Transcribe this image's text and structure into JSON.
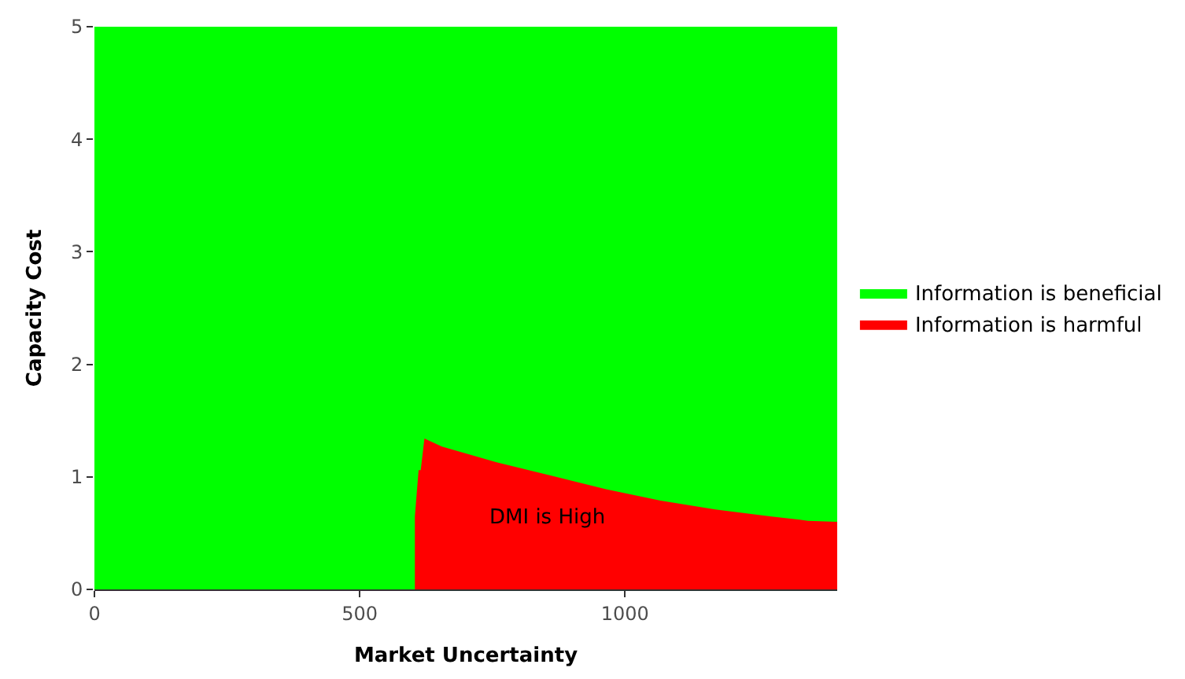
{
  "chart_data": {
    "type": "area",
    "xlabel": "Market Uncertainty",
    "ylabel": "Capacity Cost",
    "series": [
      {
        "name": "Information is beneficial",
        "color": "#00ff00",
        "x": [
          0,
          1400
        ],
        "values": [
          5,
          5
        ]
      },
      {
        "name": "Information is harmful",
        "color": "#ff0000",
        "x": [
          604,
          604,
          611,
          615,
          622,
          655,
          758,
          861,
          964,
          1067,
          1170,
          1273,
          1345,
          1400
        ],
        "values": [
          0,
          0.65,
          1.06,
          1.06,
          1.34,
          1.27,
          1.13,
          1.01,
          0.89,
          0.79,
          0.71,
          0.65,
          0.61,
          0.6
        ]
      }
    ],
    "annotations": [
      "DMI is High"
    ],
    "xlim": [
      0,
      1400
    ],
    "xticks": [
      0,
      500,
      1000
    ],
    "ylim": [
      0,
      5
    ],
    "yticks": [
      0,
      1,
      2,
      3,
      4,
      5
    ],
    "legend": "right"
  }
}
